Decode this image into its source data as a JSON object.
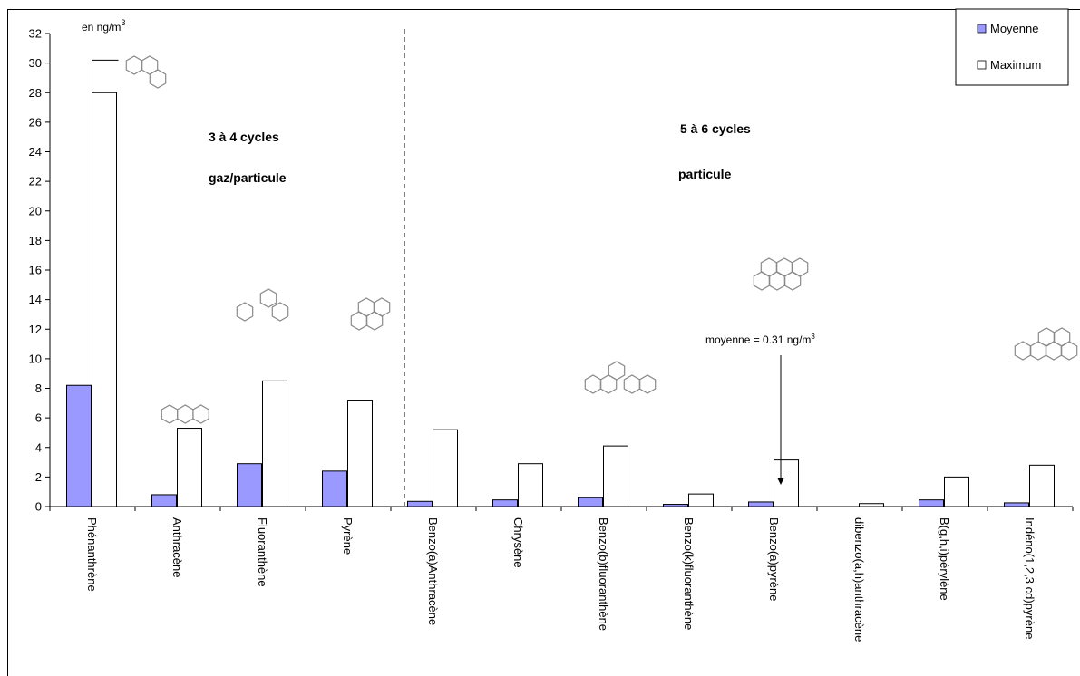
{
  "chart_data": {
    "type": "bar",
    "unit_label": "en ng/m",
    "unit_superscript": "3",
    "categories": [
      "Phénanthrène",
      "Anthracène",
      "Fluoranthène",
      "Pyrène",
      "Benzo(a)Anthracène",
      "Chrysène",
      "Benzo(b)fluoranthène",
      "Benzo(k)fluoranthène",
      "Benzo(a)pyrène",
      "dibenzo(a,h)anthracène",
      "B(g,h,i)pérylène",
      "Indéno(1,2,3 cd)pyrène"
    ],
    "series": [
      {
        "name": "Moyenne",
        "color": "#9999ff",
        "values": [
          8.2,
          0.8,
          2.9,
          2.4,
          0.35,
          0.45,
          0.6,
          0.15,
          0.31,
          0.0,
          0.45,
          0.25
        ]
      },
      {
        "name": "Maximum",
        "color": "#ffffff",
        "values": [
          28.0,
          5.3,
          8.5,
          7.2,
          5.2,
          2.9,
          4.1,
          0.85,
          3.15,
          0.2,
          2.0,
          2.8
        ]
      }
    ],
    "ylim": [
      0,
      32
    ],
    "yticks": [
      0,
      2,
      4,
      6,
      8,
      10,
      12,
      14,
      16,
      18,
      20,
      22,
      24,
      26,
      28,
      30,
      32
    ],
    "legend_position": "top-right",
    "groups": [
      {
        "line1": "3 à 4 cycles",
        "line2": "gaz/particule"
      },
      {
        "line1": "5 à 6 cycles",
        "line2": "particule"
      }
    ],
    "annotation": {
      "text": "moyenne = 0.31 ng/m",
      "superscript": "3",
      "category": "Benzo(a)pyrène"
    },
    "grid": false
  }
}
